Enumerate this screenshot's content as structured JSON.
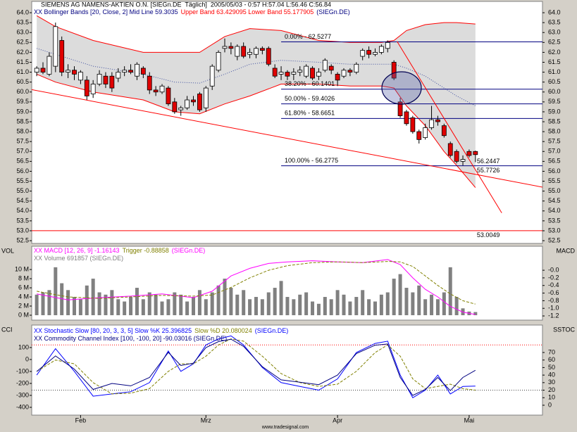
{
  "chart_data": [
    {
      "type": "candlestick",
      "title": "SIEMENS AG NAMENS-AKTIEN O.N. [SIEGn.DE  Täglich]  2005/05/03 - 0:57 H:57.04 L:56.46 C:56.84",
      "legend": [
        [
          {
            "text": "XX Bollinger Bands [20, Close, 2] Mid Line 59.3035",
            "color": "#000080"
          },
          {
            "text": "Upper Band 63.429095 Lower Band 55.177905",
            "color": "#ff0000"
          },
          {
            "text": "(SIEGn.DE)",
            "color": "#000080"
          }
        ]
      ],
      "xlim": [
        -0.8,
        80.7
      ],
      "ylim": [
        52.36,
        64.57
      ],
      "yticks": [
        52.5,
        {
          "value": 53,
          "label": "53.0"
        },
        53.5,
        {
          "value": 54,
          "label": "54.0"
        },
        54.5,
        {
          "value": 55,
          "label": "55.0"
        },
        55.5,
        {
          "value": 56,
          "label": "56.0"
        },
        56.5,
        {
          "value": 57,
          "label": "57.0"
        },
        57.5,
        {
          "value": 58,
          "label": "58.0"
        },
        58.5,
        {
          "value": 59,
          "label": "59.0"
        },
        59.5,
        {
          "value": 60,
          "label": "60.0"
        },
        60.5,
        {
          "value": 61,
          "label": "61.0"
        },
        61.5,
        {
          "value": 62,
          "label": "62.0"
        },
        62.5,
        {
          "value": 63,
          "label": "63.0"
        },
        63.5,
        {
          "value": 64,
          "label": "64.0"
        }
      ],
      "up_color": "#ffffff",
      "down_color": "#e00000",
      "open": [
        61.0,
        61.2,
        60.9,
        61.3,
        62.6,
        61.0,
        61.1,
        60.6,
        60.6,
        59.9,
        60.4,
        60.8,
        60.8,
        60.7,
        61.0,
        61.1,
        60.8,
        61.2,
        60.8,
        60.1,
        60.0,
        60.2,
        59.5,
        59.1,
        59.2,
        59.6,
        59.9,
        59.2,
        60.3,
        61.1,
        62.2,
        62.3,
        61.8,
        62.3,
        61.9,
        61.9,
        62.2,
        62.2,
        61.2,
        60.9,
        61.0,
        60.9,
        61.0,
        60.8,
        61.2,
        60.8,
        61.1,
        61.3,
        60.9,
        60.8,
        61.1,
        61.0,
        61.8,
        62.1,
        61.9,
        62.0,
        62.2,
        61.5,
        59.5,
        59.0,
        58.7,
        58.0,
        57.7,
        58.2,
        58.6,
        58.3,
        57.4,
        57.0,
        56.5,
        57.0,
        57.0
      ],
      "high": [
        61.3,
        61.5,
        62.0,
        63.5,
        62.8,
        61.4,
        61.3,
        61.1,
        60.8,
        60.6,
        61.1,
        61.0,
        61.0,
        61.2,
        61.3,
        61.4,
        61.5,
        61.3,
        61.0,
        60.3,
        60.4,
        60.3,
        59.7,
        59.3,
        59.8,
        59.8,
        60.0,
        60.3,
        61.4,
        62.1,
        62.7,
        62.5,
        62.4,
        62.5,
        62.2,
        62.3,
        62.3,
        62.3,
        61.4,
        61.3,
        61.1,
        61.2,
        61.3,
        61.4,
        61.3,
        61.2,
        61.7,
        61.4,
        61.0,
        61.2,
        61.2,
        61.5,
        62.2,
        62.3,
        62.2,
        62.4,
        62.6,
        61.6,
        59.7,
        59.1,
        58.8,
        58.1,
        58.4,
        59.3,
        58.8,
        58.4,
        57.5,
        57.1,
        56.8,
        57.1,
        57.04
      ],
      "low": [
        60.8,
        60.9,
        60.8,
        61.0,
        60.8,
        60.7,
        60.6,
        60.4,
        59.6,
        59.7,
        60.3,
        60.2,
        60.0,
        60.5,
        60.8,
        60.9,
        60.6,
        60.7,
        59.9,
        59.8,
        59.9,
        59.3,
        58.9,
        58.8,
        59.1,
        59.3,
        59.0,
        59.0,
        60.1,
        61.0,
        62.0,
        61.9,
        61.6,
        61.7,
        61.7,
        61.7,
        61.9,
        61.3,
        60.7,
        60.6,
        60.6,
        60.6,
        60.8,
        60.7,
        60.6,
        60.6,
        61.0,
        60.9,
        60.3,
        60.7,
        60.8,
        60.9,
        61.6,
        61.7,
        61.8,
        61.9,
        62.0,
        60.6,
        58.7,
        58.3,
        57.9,
        57.4,
        57.6,
        58.1,
        58.3,
        57.7,
        56.7,
        56.4,
        56.3,
        56.7,
        56.46
      ],
      "close": [
        61.2,
        61.0,
        61.8,
        63.3,
        61.0,
        61.1,
        60.9,
        61.0,
        59.8,
        60.4,
        60.9,
        60.4,
        60.2,
        61.0,
        61.1,
        61.0,
        61.4,
        60.9,
        60.1,
        60.0,
        60.3,
        59.4,
        59.0,
        59.2,
        59.6,
        59.5,
        59.1,
        60.2,
        61.3,
        62.0,
        62.3,
        62.2,
        62.3,
        61.8,
        62.0,
        62.2,
        62.1,
        61.4,
        60.8,
        61.0,
        60.8,
        61.0,
        61.1,
        61.3,
        60.7,
        61.0,
        61.6,
        61.1,
        60.6,
        61.1,
        61.0,
        61.4,
        62.1,
        61.9,
        62.0,
        62.3,
        62.5,
        60.7,
        58.8,
        58.4,
        58.0,
        57.6,
        58.2,
        58.6,
        58.5,
        57.8,
        56.8,
        56.5,
        56.6,
        56.8,
        56.84
      ],
      "bands": {
        "x": [
          0,
          3,
          9,
          17,
          22,
          26,
          30,
          34,
          39,
          45,
          50,
          55,
          57,
          59,
          62,
          65,
          67,
          70
        ],
        "upper": [
          63.85,
          63.3,
          62.6,
          62.0,
          62.0,
          62.0,
          62.8,
          63.2,
          63.1,
          62.6,
          62.5,
          62.5,
          62.6,
          63.1,
          63.4,
          63.5,
          63.5,
          63.429095
        ],
        "mid": [
          62.2,
          61.9,
          61.3,
          60.9,
          60.5,
          60.45,
          60.9,
          61.4,
          61.6,
          61.5,
          61.4,
          61.4,
          61.4,
          61.2,
          60.8,
          60.2,
          59.8,
          59.3035
        ],
        "lower": [
          60.9,
          60.5,
          60.0,
          59.6,
          59.0,
          58.9,
          59.4,
          59.8,
          60.4,
          60.4,
          60.3,
          60.3,
          60.2,
          59.3,
          58.3,
          57.0,
          56.3,
          55.177905
        ],
        "color": "#ff0000",
        "mid_color": "#4050a0",
        "fill": "#dcdcdc"
      },
      "fibonacci": {
        "x_start": 39,
        "color": "#000080",
        "levels": [
          {
            "value": 62.5277,
            "label": "0.00% - 62.5277"
          },
          {
            "value": 60.1401,
            "label": "38.20% - 60.1401"
          },
          {
            "value": 59.4026,
            "label": "50.00% - 59.4026"
          },
          {
            "value": 58.6651,
            "label": "61.80% - 58.6651"
          },
          {
            "value": 56.2775,
            "label": "100.00% - 56.2775"
          }
        ]
      },
      "trendlines": [
        {
          "x": [
            -0.8,
            80.7
          ],
          "values": [
            60.12,
            55.2
          ],
          "end_value": 55.7726,
          "color": "#ff0000"
        },
        {
          "x": [
            57.5,
            74.2
          ],
          "values": [
            62.55,
            53.9
          ],
          "end_value": 56.2447,
          "color": "#ff0000"
        }
      ],
      "hline": {
        "value": 53.0049,
        "color": "#ff0000"
      }
    },
    {
      "type": "bar",
      "legend": [
        [
          {
            "text": "XX MACD [12, 26, 9] -1.16143",
            "color": "#ff00ff"
          },
          {
            "text": "Trigger -0.88858",
            "color": "#808000"
          },
          {
            "text": "(SIEGn.DE)",
            "color": "#ff00ff"
          }
        ],
        [
          {
            "text": "XX Volume 691857 (SIEGn.DE)",
            "color": "#808080"
          }
        ]
      ],
      "y_label": "VOL",
      "y2_label": "MACD",
      "xlim": [
        -0.8,
        80.7
      ],
      "ylim": [
        -1080000,
        15100000
      ],
      "yticks": [
        {
          "value": 0,
          "label": "0 M"
        },
        {
          "value": 2000000,
          "label": "2 M"
        },
        {
          "value": 4000000,
          "label": "4 M"
        },
        {
          "value": 6000000,
          "label": "6 M"
        },
        {
          "value": 8000000,
          "label": "8 M"
        },
        {
          "value": 10000000,
          "label": "10 M"
        }
      ],
      "y2lim": [
        -1.31,
        0.63
      ],
      "y2ticks": [
        {
          "value": 0,
          "label": "-0.0"
        },
        -0.2,
        -0.4,
        -0.6,
        -0.8,
        {
          "value": -1,
          "label": "-1.0"
        },
        -1.2
      ],
      "color": "#808080",
      "values": [
        4500000,
        5000000,
        5500000,
        10500000,
        7000000,
        5500000,
        4000000,
        3500000,
        6500000,
        8000000,
        5000000,
        4500000,
        5500000,
        3500000,
        3000000,
        4000000,
        6000000,
        3500000,
        5000000,
        4500000,
        3000000,
        3500000,
        5000000,
        4500000,
        3000000,
        4000000,
        5500000,
        3500000,
        5000000,
        6500000,
        8000000,
        6000000,
        4500000,
        5500000,
        3500000,
        4000000,
        3500000,
        5000000,
        6000000,
        7500000,
        4000000,
        3500000,
        4500000,
        5000000,
        3000000,
        2500000,
        4000000,
        3500000,
        5500000,
        4500000,
        3000000,
        4000000,
        5500000,
        3500000,
        3000000,
        4500000,
        5000000,
        8000000,
        9000000,
        6000000,
        5000000,
        6500000,
        3500000,
        4500000,
        3500000,
        5000000,
        10500000,
        4000000,
        1500000,
        800000,
        691857
      ],
      "series": [
        {
          "color": "#ff00ff",
          "axis": "y2",
          "x": [
            0,
            5,
            10,
            15,
            20,
            25,
            28,
            31,
            34,
            37,
            40,
            44,
            48,
            52,
            56,
            58,
            60,
            62,
            64,
            66,
            68,
            70
          ],
          "values": [
            -0.62,
            -0.78,
            -0.72,
            -0.68,
            -0.62,
            -0.72,
            -0.55,
            -0.15,
            0.05,
            0.18,
            0.22,
            0.25,
            0.22,
            0.2,
            0.28,
            0.15,
            -0.2,
            -0.5,
            -0.7,
            -0.95,
            -1.1,
            -1.16143
          ]
        },
        {
          "color": "#808000",
          "dash": true,
          "axis": "y2",
          "x": [
            0,
            5,
            10,
            15,
            20,
            25,
            28,
            31,
            34,
            37,
            40,
            44,
            48,
            52,
            56,
            58,
            60,
            62,
            64,
            66,
            68,
            70
          ],
          "values": [
            -0.55,
            -0.7,
            -0.74,
            -0.7,
            -0.66,
            -0.68,
            -0.65,
            -0.45,
            -0.2,
            0.0,
            0.12,
            0.2,
            0.22,
            0.2,
            0.23,
            0.22,
            0.1,
            -0.15,
            -0.4,
            -0.62,
            -0.8,
            -0.88858
          ]
        }
      ]
    },
    {
      "type": "line",
      "legend": [
        [
          {
            "text": "XX Stochastic Slow [80, 20, 3, 3, 5] Slow %K 25.396825",
            "color": "#0000ff"
          },
          {
            "text": "Slow %D 20.080024",
            "color": "#808000"
          },
          {
            "text": "(SIEGn.DE)",
            "color": "#0000ff"
          }
        ],
        [
          {
            "text": "XX Commodity Channel Index [100, -100, 20] -90.03016 (SIEGn.DE)",
            "color": "#000080"
          }
        ]
      ],
      "y_label": "CCI",
      "y2_label": "SSTOC",
      "xlim": [
        -0.8,
        80.7
      ],
      "xticks": [
        {
          "value": 7,
          "label": "Feb"
        },
        {
          "value": 27,
          "label": "Mrz"
        },
        {
          "value": 48,
          "label": "Apr"
        },
        {
          "value": 69,
          "label": "Mai"
        }
      ],
      "ylim": [
        -465,
        288
      ],
      "yticks": [
        100,
        0,
        -100,
        -200,
        -300,
        -400
      ],
      "y2lim": [
        -13.1,
        106.4
      ],
      "y2ticks": [
        0,
        10,
        20,
        30,
        40,
        50,
        60,
        70
      ],
      "levels": [
        {
          "value": 80,
          "color": "#ff0000"
        },
        {
          "value": 20,
          "color": "#404040"
        }
      ],
      "series": [
        {
          "color": "#0000ff",
          "axis": "y2",
          "x": [
            0,
            3,
            6,
            9,
            12,
            15,
            18,
            21,
            23,
            25,
            27,
            29,
            31,
            33,
            36,
            39,
            42,
            45,
            48,
            51,
            54,
            56,
            58,
            60,
            62,
            64,
            66,
            68,
            70
          ],
          "values": [
            40,
            75,
            45,
            12,
            15,
            18,
            30,
            72,
            45,
            55,
            80,
            88,
            92,
            80,
            50,
            30,
            25,
            20,
            35,
            70,
            82,
            85,
            40,
            10,
            20,
            40,
            15,
            25,
            25.396825
          ]
        },
        {
          "color": "#808000",
          "dash": true,
          "axis": "y2",
          "x": [
            0,
            3,
            6,
            9,
            12,
            15,
            18,
            21,
            23,
            25,
            27,
            29,
            31,
            33,
            36,
            39,
            42,
            45,
            48,
            51,
            54,
            56,
            58,
            60,
            62,
            64,
            66,
            68,
            70
          ],
          "values": [
            45,
            60,
            55,
            30,
            15,
            16,
            22,
            45,
            55,
            55,
            65,
            80,
            88,
            85,
            65,
            42,
            30,
            25,
            28,
            45,
            70,
            80,
            65,
            35,
            22,
            25,
            28,
            22,
            20.080024
          ]
        },
        {
          "color": "#000080",
          "x": [
            0,
            3,
            6,
            9,
            12,
            15,
            18,
            21,
            23,
            25,
            27,
            29,
            31,
            33,
            36,
            39,
            42,
            45,
            48,
            51,
            54,
            56,
            58,
            60,
            62,
            64,
            66,
            68,
            70
          ],
          "values": [
            -100,
            30,
            -80,
            -250,
            -200,
            -220,
            -150,
            60,
            -50,
            -30,
            100,
            150,
            170,
            110,
            -60,
            -170,
            -190,
            -210,
            -130,
            50,
            120,
            130,
            -150,
            -300,
            -250,
            -150,
            -260,
            -150,
            -90.03016
          ]
        }
      ]
    }
  ],
  "footer": "www.tradesignal.com"
}
